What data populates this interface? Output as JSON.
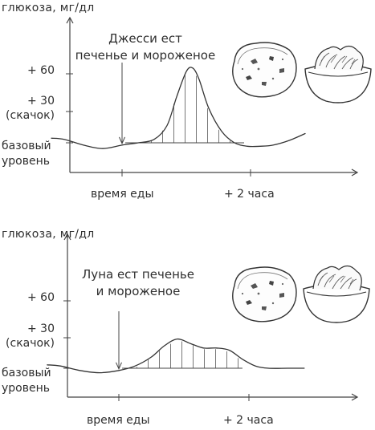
{
  "panels": [
    {
      "y_title": "глюкоза, мг/дл",
      "y_labels": {
        "plus60": "+ 60",
        "plus30": "+ 30",
        "spike": "(скачок)",
        "baseline_1": "базовый",
        "baseline_2": "уровень"
      },
      "x_labels": {
        "meal": "время еды",
        "two_hours": "+ 2 часа"
      },
      "annotation": "Джесси ест\nпеченье и мороженое",
      "food_icons": [
        "cookie-icon",
        "ice-cream-bowl-icon"
      ]
    },
    {
      "y_title": "глюкоза, мг/дл",
      "y_labels": {
        "plus60": "+ 60",
        "plus30": "+ 30",
        "spike": "(скачок)",
        "baseline_1": "базовый",
        "baseline_2": "уровень"
      },
      "x_labels": {
        "meal": "время еды",
        "two_hours": "+ 2 часа"
      },
      "annotation": "Луна ест печенье\nи мороженое",
      "food_icons": [
        "cookie-icon",
        "ice-cream-bowl-icon"
      ]
    }
  ],
  "chart_data": [
    {
      "type": "line",
      "title": "",
      "ylabel": "глюкоза, мг/дл",
      "xlabel": "",
      "x_ticks": [
        "время еды",
        "+ 2 часа"
      ],
      "y_ticks": [
        "базовый уровень",
        "+ 30 (скачок)",
        "+ 60"
      ],
      "ylim": [
        -10,
        85
      ],
      "xlim": [
        -1.1,
        2.9
      ],
      "meal_time": 0,
      "series": [
        {
          "x": [
            -1.1,
            -0.9,
            -0.6,
            -0.3,
            0,
            0.25,
            0.5,
            0.7,
            0.85,
            1.0,
            1.1,
            1.2,
            1.35,
            1.55,
            1.75,
            1.95,
            2.15,
            2.35,
            2.6,
            2.85
          ],
          "y": [
            4,
            3,
            -2,
            -5,
            -2,
            0,
            3,
            15,
            40,
            62,
            65,
            55,
            30,
            10,
            0,
            -3,
            -3,
            -2,
            2,
            8
          ]
        }
      ],
      "shaded_region": [
        0,
        2.0
      ],
      "grid": false
    },
    {
      "type": "line",
      "title": "",
      "ylabel": "глюкоза, мг/дл",
      "xlabel": "",
      "x_ticks": [
        "время еды",
        "+ 2 часа"
      ],
      "y_ticks": [
        "базовый уровень",
        "+ 30 (скачок)",
        "+ 60"
      ],
      "ylim": [
        -10,
        85
      ],
      "xlim": [
        -1.1,
        2.9
      ],
      "meal_time": 0,
      "series": [
        {
          "x": [
            -1.1,
            -0.9,
            -0.6,
            -0.3,
            0,
            0.25,
            0.5,
            0.7,
            0.9,
            1.1,
            1.3,
            1.5,
            1.7,
            1.9,
            2.1,
            2.3,
            2.6,
            2.85
          ],
          "y": [
            3,
            2,
            -2,
            -4,
            -2,
            2,
            10,
            20,
            26,
            22,
            18,
            18,
            16,
            8,
            2,
            0,
            0,
            0
          ]
        }
      ],
      "shaded_region": [
        0,
        2.0
      ],
      "grid": false
    }
  ]
}
